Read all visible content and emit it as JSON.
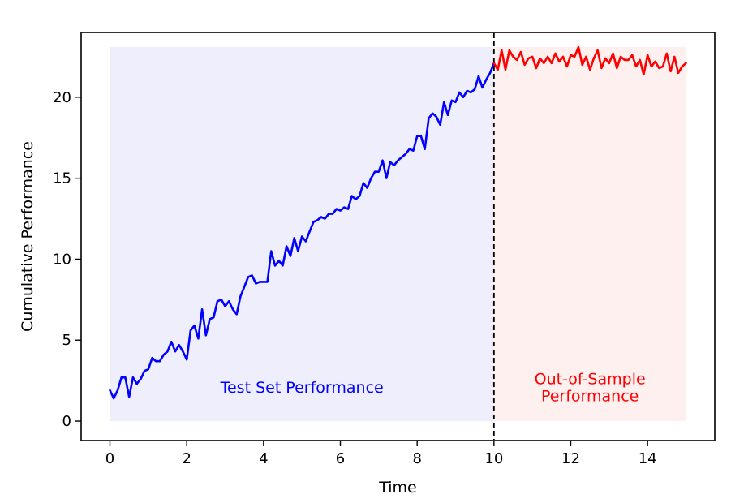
{
  "chart_data": {
    "type": "line",
    "title": "",
    "xlabel": "Time",
    "ylabel": "Cumulative Performance",
    "xlim": [
      -0.75,
      15.75
    ],
    "ylim": [
      -1.2,
      24.0
    ],
    "xticks": [
      0,
      2,
      4,
      6,
      8,
      10,
      12,
      14
    ],
    "yticks": [
      0,
      5,
      10,
      15,
      20
    ],
    "grid": false,
    "legend": "none",
    "split_x": 10,
    "regions": [
      {
        "x": [
          0,
          10
        ],
        "y": [
          0,
          23.1
        ],
        "color": "#eeeefc",
        "text": "Test Set Performance",
        "text_color": "#0000ff",
        "text_x": 5,
        "text_y": 2.1
      },
      {
        "x": [
          10,
          15
        ],
        "y": [
          0,
          23.1
        ],
        "color": "#fff0f0",
        "text": "Out-of-Sample\nPerformance",
        "text_color": "#ff0000",
        "text_x": 12.5,
        "text_y": 2.1
      }
    ],
    "series": [
      {
        "color": "#0000ff",
        "x_start": 0,
        "x_step": 0.1,
        "values": [
          1.9,
          1.4,
          1.9,
          2.7,
          2.7,
          1.5,
          2.7,
          2.3,
          2.6,
          3.1,
          3.2,
          3.9,
          3.7,
          3.7,
          4.1,
          4.3,
          4.9,
          4.3,
          4.7,
          4.3,
          3.8,
          5.6,
          5.9,
          5.1,
          6.9,
          5.3,
          6.3,
          6.4,
          7.4,
          7.5,
          7.1,
          7.4,
          6.9,
          6.6,
          7.7,
          8.3,
          8.9,
          9.0,
          8.5,
          8.6,
          8.6,
          8.6,
          10.5,
          9.6,
          9.9,
          9.6,
          10.8,
          10.2,
          11.3,
          10.5,
          11.4,
          11.1,
          11.7,
          12.3,
          12.4,
          12.6,
          12.5,
          12.8,
          12.8,
          13.1,
          13.0,
          13.2,
          13.1,
          13.9,
          13.7,
          13.9,
          14.7,
          14.4,
          15.0,
          15.4,
          15.4,
          16.1,
          15.0,
          16.0,
          15.8,
          16.1,
          16.3,
          16.5,
          16.8,
          16.7,
          17.6,
          17.6,
          16.8,
          18.7,
          19.0,
          18.8,
          18.3,
          19.7,
          18.9,
          19.8,
          19.7,
          20.3,
          20.0,
          20.4,
          20.3,
          20.5,
          21.3,
          20.6,
          21.1,
          21.5,
          22.1
        ]
      },
      {
        "color": "#ff0000",
        "x_start": 10,
        "x_step": 0.1,
        "values": [
          22.1,
          21.7,
          22.9,
          21.7,
          22.9,
          22.5,
          22.3,
          22.8,
          22.0,
          22.4,
          22.5,
          21.8,
          22.4,
          22.1,
          22.5,
          22.1,
          22.7,
          22.2,
          22.5,
          21.9,
          22.6,
          22.5,
          23.1,
          22.0,
          22.5,
          21.7,
          22.4,
          22.9,
          21.8,
          22.4,
          22.1,
          22.7,
          21.8,
          22.5,
          22.3,
          22.3,
          22.6,
          21.9,
          22.3,
          21.4,
          22.6,
          21.9,
          22.2,
          21.8,
          21.9,
          22.7,
          21.6,
          22.5,
          21.5,
          21.9,
          22.1
        ]
      }
    ]
  }
}
